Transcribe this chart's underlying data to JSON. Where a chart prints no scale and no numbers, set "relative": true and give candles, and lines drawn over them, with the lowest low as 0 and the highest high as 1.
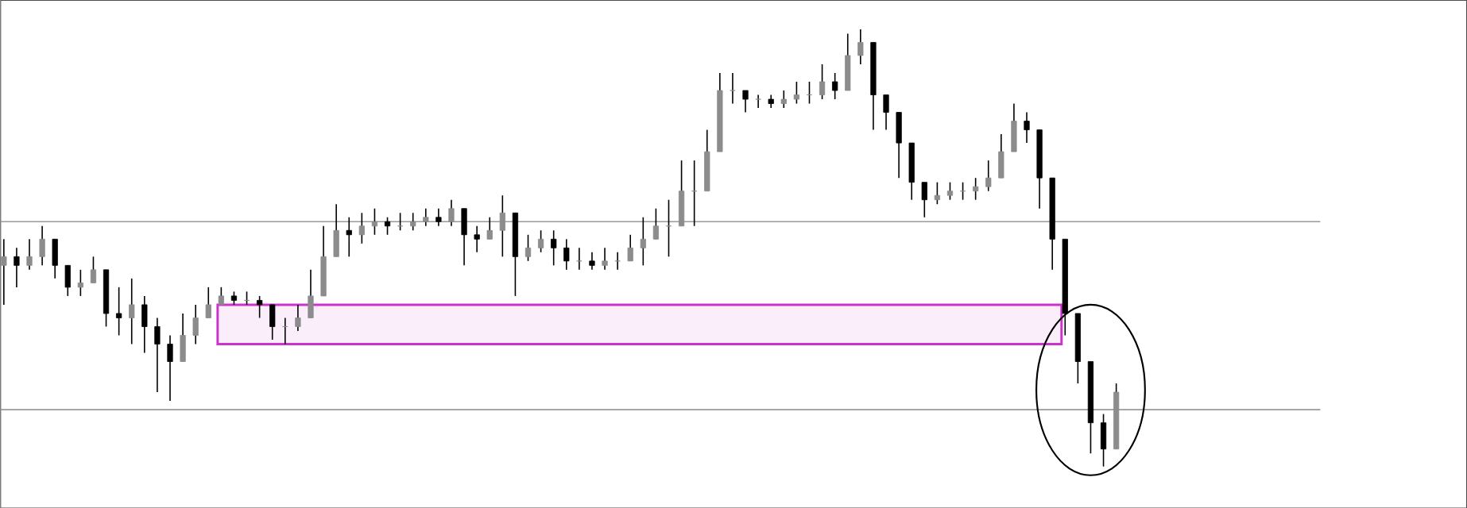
{
  "chart_data": {
    "type": "candlestick",
    "relative": true,
    "tick_labels": false,
    "categories": [
      null,
      null,
      null,
      null,
      null,
      null,
      null,
      null,
      null,
      null,
      null,
      null,
      null,
      null,
      null,
      null,
      null,
      null,
      null,
      null,
      null,
      null,
      null,
      null,
      null,
      null,
      null,
      null,
      null,
      null,
      null,
      null,
      null,
      null,
      null,
      null,
      null,
      null,
      null,
      null,
      null,
      null,
      null,
      null,
      null,
      null,
      null,
      null,
      null,
      null,
      null,
      null,
      null,
      null,
      null,
      null,
      null,
      null,
      null,
      null,
      null,
      null,
      null,
      null,
      null,
      null,
      null,
      null,
      null,
      null,
      null,
      null,
      null,
      null,
      null,
      null,
      null,
      null,
      null,
      null,
      null,
      null,
      null,
      null,
      null,
      null,
      null,
      null
    ],
    "ohlc": [
      [
        0.46,
        0.52,
        0.37,
        0.48
      ],
      [
        0.48,
        0.5,
        0.41,
        0.46
      ],
      [
        0.46,
        0.52,
        0.45,
        0.48
      ],
      [
        0.48,
        0.55,
        0.46,
        0.52
      ],
      [
        0.52,
        0.52,
        0.43,
        0.46
      ],
      [
        0.46,
        0.46,
        0.39,
        0.41
      ],
      [
        0.41,
        0.45,
        0.39,
        0.42
      ],
      [
        0.42,
        0.48,
        0.42,
        0.45
      ],
      [
        0.45,
        0.45,
        0.32,
        0.35
      ],
      [
        0.35,
        0.41,
        0.3,
        0.34
      ],
      [
        0.34,
        0.43,
        0.28,
        0.37
      ],
      [
        0.37,
        0.39,
        0.26,
        0.32
      ],
      [
        0.32,
        0.34,
        0.17,
        0.28
      ],
      [
        0.28,
        0.3,
        0.15,
        0.24
      ],
      [
        0.24,
        0.35,
        0.24,
        0.3
      ],
      [
        0.3,
        0.37,
        0.28,
        0.34
      ],
      [
        0.34,
        0.41,
        0.34,
        0.37
      ],
      [
        0.37,
        0.41,
        0.37,
        0.39
      ],
      [
        0.39,
        0.4,
        0.37,
        0.38
      ],
      [
        0.38,
        0.4,
        0.37,
        0.38
      ],
      [
        0.38,
        0.39,
        0.34,
        0.37
      ],
      [
        0.37,
        0.37,
        0.29,
        0.32
      ],
      [
        0.32,
        0.34,
        0.28,
        0.32
      ],
      [
        0.32,
        0.37,
        0.31,
        0.34
      ],
      [
        0.34,
        0.45,
        0.34,
        0.39
      ],
      [
        0.39,
        0.55,
        0.39,
        0.48
      ],
      [
        0.48,
        0.6,
        0.48,
        0.54
      ],
      [
        0.54,
        0.57,
        0.48,
        0.53
      ],
      [
        0.53,
        0.58,
        0.51,
        0.55
      ],
      [
        0.55,
        0.59,
        0.53,
        0.56
      ],
      [
        0.56,
        0.57,
        0.53,
        0.55
      ],
      [
        0.55,
        0.58,
        0.54,
        0.55
      ],
      [
        0.55,
        0.58,
        0.54,
        0.56
      ],
      [
        0.56,
        0.59,
        0.55,
        0.57
      ],
      [
        0.57,
        0.59,
        0.55,
        0.56
      ],
      [
        0.56,
        0.61,
        0.55,
        0.59
      ],
      [
        0.59,
        0.59,
        0.46,
        0.53
      ],
      [
        0.53,
        0.55,
        0.49,
        0.52
      ],
      [
        0.52,
        0.57,
        0.52,
        0.54
      ],
      [
        0.54,
        0.62,
        0.48,
        0.58
      ],
      [
        0.58,
        0.58,
        0.39,
        0.48
      ],
      [
        0.48,
        0.53,
        0.47,
        0.5
      ],
      [
        0.5,
        0.54,
        0.49,
        0.52
      ],
      [
        0.52,
        0.54,
        0.46,
        0.5
      ],
      [
        0.5,
        0.52,
        0.45,
        0.47
      ],
      [
        0.47,
        0.5,
        0.45,
        0.47
      ],
      [
        0.47,
        0.49,
        0.45,
        0.46
      ],
      [
        0.46,
        0.5,
        0.45,
        0.47
      ],
      [
        0.47,
        0.49,
        0.45,
        0.47
      ],
      [
        0.47,
        0.53,
        0.47,
        0.5
      ],
      [
        0.5,
        0.57,
        0.46,
        0.52
      ],
      [
        0.52,
        0.59,
        0.52,
        0.55
      ],
      [
        0.55,
        0.61,
        0.48,
        0.55
      ],
      [
        0.55,
        0.7,
        0.55,
        0.63
      ],
      [
        0.63,
        0.7,
        0.55,
        0.63
      ],
      [
        0.63,
        0.77,
        0.63,
        0.72
      ],
      [
        0.72,
        0.9,
        0.72,
        0.86
      ],
      [
        0.86,
        0.9,
        0.83,
        0.86
      ],
      [
        0.86,
        0.86,
        0.81,
        0.84
      ],
      [
        0.84,
        0.85,
        0.82,
        0.84
      ],
      [
        0.84,
        0.85,
        0.82,
        0.83
      ],
      [
        0.83,
        0.86,
        0.82,
        0.84
      ],
      [
        0.84,
        0.88,
        0.83,
        0.85
      ],
      [
        0.85,
        0.88,
        0.83,
        0.85
      ],
      [
        0.85,
        0.92,
        0.84,
        0.88
      ],
      [
        0.88,
        0.9,
        0.84,
        0.86
      ],
      [
        0.86,
        0.99,
        0.86,
        0.94
      ],
      [
        0.94,
        1.0,
        0.92,
        0.97
      ],
      [
        0.97,
        0.97,
        0.77,
        0.85
      ],
      [
        0.85,
        0.85,
        0.77,
        0.81
      ],
      [
        0.81,
        0.81,
        0.66,
        0.74
      ],
      [
        0.74,
        0.74,
        0.61,
        0.65
      ],
      [
        0.65,
        0.65,
        0.57,
        0.61
      ],
      [
        0.61,
        0.65,
        0.6,
        0.62
      ],
      [
        0.62,
        0.65,
        0.61,
        0.63
      ],
      [
        0.63,
        0.65,
        0.61,
        0.63
      ],
      [
        0.63,
        0.66,
        0.61,
        0.64
      ],
      [
        0.64,
        0.7,
        0.63,
        0.66
      ],
      [
        0.66,
        0.76,
        0.66,
        0.72
      ],
      [
        0.72,
        0.83,
        0.72,
        0.79
      ],
      [
        0.79,
        0.81,
        0.74,
        0.77
      ],
      [
        0.77,
        0.77,
        0.59,
        0.66
      ],
      [
        0.66,
        0.66,
        0.45,
        0.52
      ],
      [
        0.52,
        0.52,
        0.3,
        0.35
      ],
      [
        0.35,
        0.35,
        0.19,
        0.24
      ],
      [
        0.24,
        0.24,
        0.03,
        0.1
      ],
      [
        0.1,
        0.12,
        0.0,
        0.04
      ],
      [
        0.04,
        0.19,
        0.04,
        0.17
      ]
    ],
    "ref_lines": [
      {
        "axis": "y",
        "value": 0.56,
        "color": "#999999"
      },
      {
        "axis": "y",
        "value": 0.13,
        "color": "#999999"
      }
    ],
    "bands": [
      {
        "axis": "y",
        "from": 0.28,
        "to": 0.37,
        "color": "#cc33cc"
      }
    ]
  }
}
